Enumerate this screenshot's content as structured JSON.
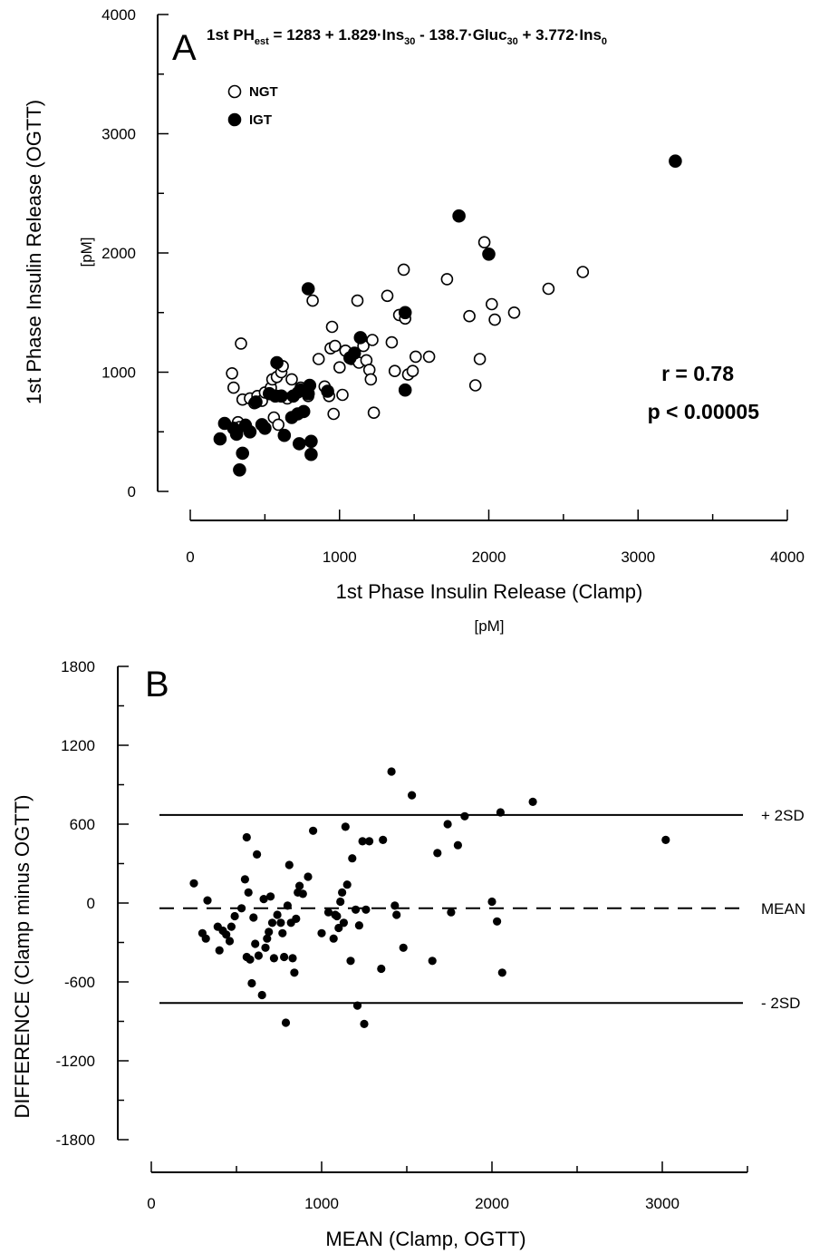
{
  "chart_data": [
    {
      "panel": "A",
      "type": "scatter",
      "equation": {
        "lhs_main": "1st PH",
        "lhs_sub": "est",
        "rhs": [
          {
            "t": " = 1283 + 1.829·Ins"
          },
          {
            "t": "30",
            "sub": true
          },
          {
            "t": " - 138.7·Gluc"
          },
          {
            "t": "30",
            "sub": true
          },
          {
            "t": " + 3.772·Ins"
          },
          {
            "t": "0",
            "sub": true
          }
        ]
      },
      "xlabel": "1st Phase Insulin Release (Clamp)",
      "xunit": "[pM]",
      "ylabel": "1st Phase Insulin Release (OGTT)",
      "yunit": "[pM]",
      "xlim": [
        0,
        4000
      ],
      "ylim": [
        0,
        4000
      ],
      "xticks": [
        0,
        1000,
        2000,
        3000,
        4000
      ],
      "yticks": [
        0,
        1000,
        2000,
        3000,
        4000
      ],
      "legend_position": "top-left",
      "stats": {
        "r": "r = 0.78",
        "p": "p < 0.00005"
      },
      "series": [
        {
          "name": "NGT",
          "marker": "open-circle",
          "points": [
            [
              280,
              990
            ],
            [
              290,
              870
            ],
            [
              320,
              580
            ],
            [
              330,
              540
            ],
            [
              340,
              1240
            ],
            [
              350,
              770
            ],
            [
              370,
              560
            ],
            [
              400,
              780
            ],
            [
              430,
              740
            ],
            [
              450,
              800
            ],
            [
              480,
              760
            ],
            [
              500,
              830
            ],
            [
              540,
              870
            ],
            [
              550,
              940
            ],
            [
              560,
              620
            ],
            [
              580,
              960
            ],
            [
              590,
              560
            ],
            [
              600,
              800
            ],
            [
              610,
              1000
            ],
            [
              620,
              1050
            ],
            [
              650,
              780
            ],
            [
              680,
              940
            ],
            [
              720,
              830
            ],
            [
              740,
              870
            ],
            [
              790,
              800
            ],
            [
              820,
              1600
            ],
            [
              860,
              1110
            ],
            [
              900,
              880
            ],
            [
              930,
              800
            ],
            [
              940,
              1200
            ],
            [
              950,
              1380
            ],
            [
              960,
              650
            ],
            [
              970,
              1220
            ],
            [
              1000,
              1040
            ],
            [
              1020,
              810
            ],
            [
              1040,
              1180
            ],
            [
              1080,
              1110
            ],
            [
              1120,
              1600
            ],
            [
              1130,
              1080
            ],
            [
              1160,
              1220
            ],
            [
              1180,
              1100
            ],
            [
              1200,
              1020
            ],
            [
              1210,
              940
            ],
            [
              1220,
              1270
            ],
            [
              1230,
              660
            ],
            [
              1320,
              1640
            ],
            [
              1350,
              1250
            ],
            [
              1370,
              1010
            ],
            [
              1400,
              1480
            ],
            [
              1430,
              1860
            ],
            [
              1440,
              1450
            ],
            [
              1460,
              980
            ],
            [
              1490,
              1010
            ],
            [
              1510,
              1130
            ],
            [
              1600,
              1130
            ],
            [
              1720,
              1780
            ],
            [
              1870,
              1470
            ],
            [
              1910,
              890
            ],
            [
              1940,
              1110
            ],
            [
              1970,
              2090
            ],
            [
              2020,
              1570
            ],
            [
              2040,
              1440
            ],
            [
              2170,
              1500
            ],
            [
              2400,
              1700
            ],
            [
              2630,
              1840
            ]
          ]
        },
        {
          "name": "IGT",
          "marker": "filled-circle",
          "points": [
            [
              200,
              440
            ],
            [
              230,
              570
            ],
            [
              290,
              530
            ],
            [
              310,
              480
            ],
            [
              330,
              180
            ],
            [
              350,
              320
            ],
            [
              370,
              550
            ],
            [
              400,
              500
            ],
            [
              440,
              750
            ],
            [
              480,
              560
            ],
            [
              500,
              530
            ],
            [
              530,
              820
            ],
            [
              570,
              800
            ],
            [
              580,
              1080
            ],
            [
              610,
              800
            ],
            [
              630,
              470
            ],
            [
              680,
              620
            ],
            [
              690,
              800
            ],
            [
              720,
              650
            ],
            [
              730,
              400
            ],
            [
              740,
              850
            ],
            [
              760,
              670
            ],
            [
              790,
              1700
            ],
            [
              790,
              820
            ],
            [
              800,
              890
            ],
            [
              810,
              420
            ],
            [
              810,
              310
            ],
            [
              920,
              840
            ],
            [
              1070,
              1120
            ],
            [
              1100,
              1160
            ],
            [
              1140,
              1290
            ],
            [
              1440,
              850
            ],
            [
              1440,
              1500
            ],
            [
              1800,
              2310
            ],
            [
              2000,
              1990
            ],
            [
              3250,
              2770
            ]
          ]
        }
      ]
    },
    {
      "panel": "B",
      "type": "scatter",
      "xlabel": "MEAN (Clamp, OGTT)",
      "ylabel": "DIFFERENCE (Clamp minus OGTT)",
      "xlim": [
        0,
        3500
      ],
      "ylim": [
        -1800,
        1800
      ],
      "xticks": [
        0,
        1000,
        2000,
        3000
      ],
      "yticks": [
        1800,
        1200,
        600,
        0,
        -600,
        -1200,
        -1800
      ],
      "reference_lines": [
        {
          "label": "+ 2SD",
          "value": 670,
          "style": "solid"
        },
        {
          "label": "MEAN",
          "value": -40,
          "style": "dashed"
        },
        {
          "label": "- 2SD",
          "value": -760,
          "style": "solid"
        }
      ],
      "points": [
        [
          250,
          150
        ],
        [
          300,
          -230
        ],
        [
          320,
          -270
        ],
        [
          330,
          20
        ],
        [
          390,
          -180
        ],
        [
          400,
          -360
        ],
        [
          420,
          -210
        ],
        [
          440,
          -240
        ],
        [
          460,
          -290
        ],
        [
          470,
          -180
        ],
        [
          490,
          -100
        ],
        [
          530,
          -40
        ],
        [
          550,
          180
        ],
        [
          560,
          500
        ],
        [
          560,
          -410
        ],
        [
          570,
          80
        ],
        [
          580,
          -430
        ],
        [
          590,
          -610
        ],
        [
          600,
          -110
        ],
        [
          610,
          -310
        ],
        [
          620,
          370
        ],
        [
          630,
          -400
        ],
        [
          650,
          -700
        ],
        [
          660,
          30
        ],
        [
          670,
          -340
        ],
        [
          680,
          -270
        ],
        [
          690,
          -220
        ],
        [
          700,
          50
        ],
        [
          710,
          -150
        ],
        [
          720,
          -420
        ],
        [
          740,
          -90
        ],
        [
          760,
          -150
        ],
        [
          770,
          -230
        ],
        [
          780,
          -410
        ],
        [
          790,
          -910
        ],
        [
          800,
          -20
        ],
        [
          810,
          290
        ],
        [
          820,
          -150
        ],
        [
          830,
          -420
        ],
        [
          840,
          -530
        ],
        [
          850,
          -120
        ],
        [
          860,
          80
        ],
        [
          870,
          130
        ],
        [
          890,
          70
        ],
        [
          920,
          200
        ],
        [
          950,
          550
        ],
        [
          1000,
          -230
        ],
        [
          1040,
          -70
        ],
        [
          1070,
          -270
        ],
        [
          1080,
          -90
        ],
        [
          1090,
          -100
        ],
        [
          1100,
          -190
        ],
        [
          1110,
          10
        ],
        [
          1120,
          80
        ],
        [
          1130,
          -150
        ],
        [
          1140,
          580
        ],
        [
          1150,
          140
        ],
        [
          1170,
          -440
        ],
        [
          1180,
          340
        ],
        [
          1200,
          -50
        ],
        [
          1210,
          -780
        ],
        [
          1220,
          -170
        ],
        [
          1240,
          470
        ],
        [
          1250,
          -920
        ],
        [
          1260,
          -50
        ],
        [
          1280,
          470
        ],
        [
          1350,
          -500
        ],
        [
          1360,
          480
        ],
        [
          1410,
          1000
        ],
        [
          1430,
          -20
        ],
        [
          1440,
          -90
        ],
        [
          1480,
          -340
        ],
        [
          1530,
          820
        ],
        [
          1650,
          -440
        ],
        [
          1680,
          380
        ],
        [
          1740,
          600
        ],
        [
          1760,
          -70
        ],
        [
          1800,
          440
        ],
        [
          1840,
          660
        ],
        [
          2000,
          10
        ],
        [
          2030,
          -140
        ],
        [
          2050,
          690
        ],
        [
          2060,
          -530
        ],
        [
          2240,
          770
        ],
        [
          3020,
          480
        ]
      ]
    }
  ]
}
